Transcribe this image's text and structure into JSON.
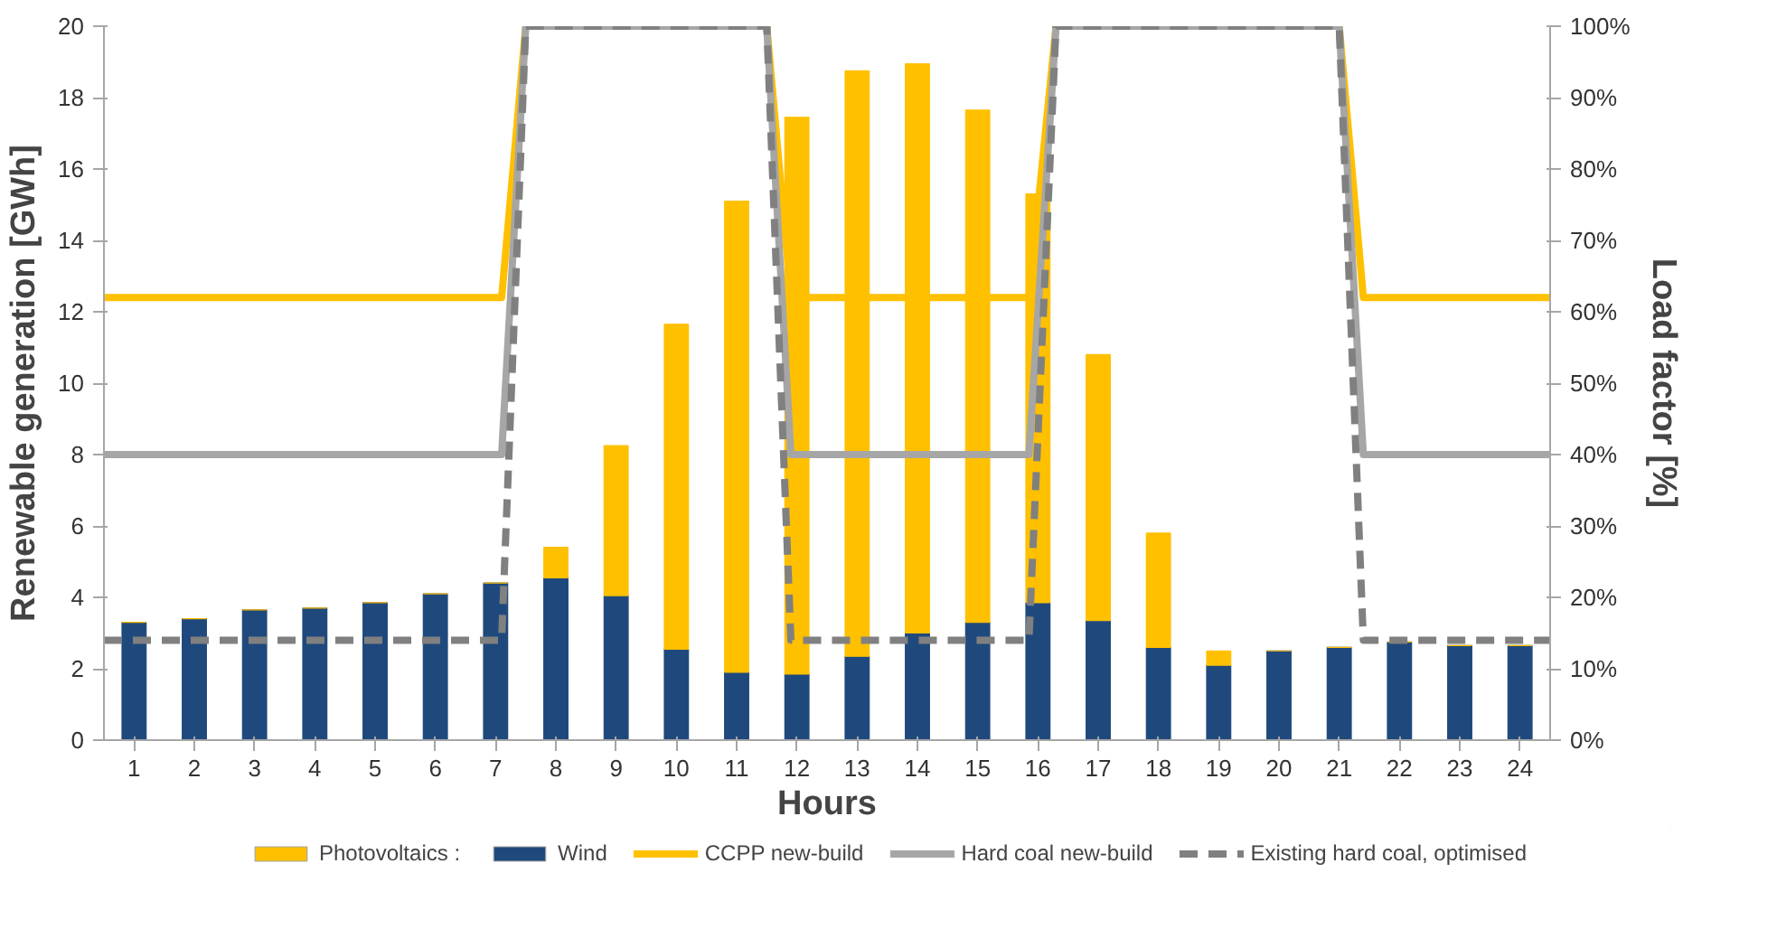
{
  "chart_data": {
    "type": "bar",
    "stacked": true,
    "xlabel": "Hours",
    "ylabel": "Renewable generation [GWh]",
    "y2label": "Load factor [%]",
    "x": [
      1,
      2,
      3,
      4,
      5,
      6,
      7,
      8,
      9,
      10,
      11,
      12,
      13,
      14,
      15,
      16,
      17,
      18,
      19,
      20,
      21,
      22,
      23,
      24
    ],
    "xlim": [
      0.5,
      24.5
    ],
    "xticks": [
      1,
      2,
      3,
      4,
      5,
      6,
      7,
      8,
      9,
      10,
      11,
      12,
      13,
      14,
      15,
      16,
      17,
      18,
      19,
      20,
      21,
      22,
      23,
      24
    ],
    "ylim": [
      0,
      20
    ],
    "yticks": [
      0,
      2,
      4,
      6,
      8,
      10,
      12,
      14,
      16,
      18,
      20
    ],
    "y2lim": [
      0,
      100
    ],
    "y2ticks": [
      {
        "value": 0,
        "label": "0%"
      },
      {
        "value": 10,
        "label": "10%"
      },
      {
        "value": 20,
        "label": "20%"
      },
      {
        "value": 30,
        "label": "30%"
      },
      {
        "value": 40,
        "label": "40%"
      },
      {
        "value": 50,
        "label": "50%"
      },
      {
        "value": 60,
        "label": "60%"
      },
      {
        "value": 70,
        "label": "70%"
      },
      {
        "value": 80,
        "label": "80%"
      },
      {
        "value": 90,
        "label": "90%"
      },
      {
        "value": 100,
        "label": "100%"
      }
    ],
    "grid": false,
    "legend": "bottom",
    "series": [
      {
        "name": "Wind",
        "color": "#1f497d",
        "values": [
          3.3,
          3.4,
          3.65,
          3.7,
          3.85,
          4.1,
          4.4,
          4.55,
          4.05,
          2.55,
          1.9,
          1.85,
          2.35,
          3.0,
          3.3,
          3.85,
          3.35,
          2.6,
          2.1,
          2.5,
          2.6,
          2.75,
          2.65,
          2.65
        ]
      },
      {
        "name": "Photovoltaics :",
        "color": "#ffc000",
        "values": [
          0,
          0,
          0,
          0,
          0,
          0,
          0,
          0.85,
          4.2,
          9.1,
          13.2,
          15.6,
          16.4,
          15.95,
          14.35,
          11.45,
          7.45,
          3.2,
          0.4,
          0,
          0,
          0,
          0,
          0
        ]
      },
      {
        "name": "CCPP new-build",
        "type": "line",
        "axis": "y2",
        "color": "#ffc000",
        "line_style": "solid",
        "x": [
          0.5,
          7.1,
          7.5,
          11.5,
          11.9,
          15.85,
          16.3,
          21,
          21.4,
          24.5
        ],
        "values": [
          62,
          62,
          100,
          100,
          62,
          62,
          100,
          100,
          62,
          62
        ]
      },
      {
        "name": "Hard coal new-build",
        "type": "line",
        "axis": "y2",
        "color": "#a6a6a6",
        "line_style": "solid",
        "x": [
          0.5,
          7.1,
          7.5,
          11.5,
          11.9,
          15.85,
          16.3,
          21,
          21.4,
          24.5
        ],
        "values": [
          40,
          40,
          100,
          100,
          40,
          40,
          100,
          100,
          40,
          40
        ]
      },
      {
        "name": "Existing hard coal, optimised",
        "type": "line",
        "axis": "y2",
        "color": "#808080",
        "line_style": "dashed",
        "x": [
          0.5,
          7.1,
          7.5,
          11.5,
          11.9,
          15.85,
          16.3,
          21,
          21.4,
          24.5
        ],
        "values": [
          14,
          14,
          100,
          100,
          14,
          14,
          100,
          100,
          14,
          14
        ]
      }
    ]
  }
}
